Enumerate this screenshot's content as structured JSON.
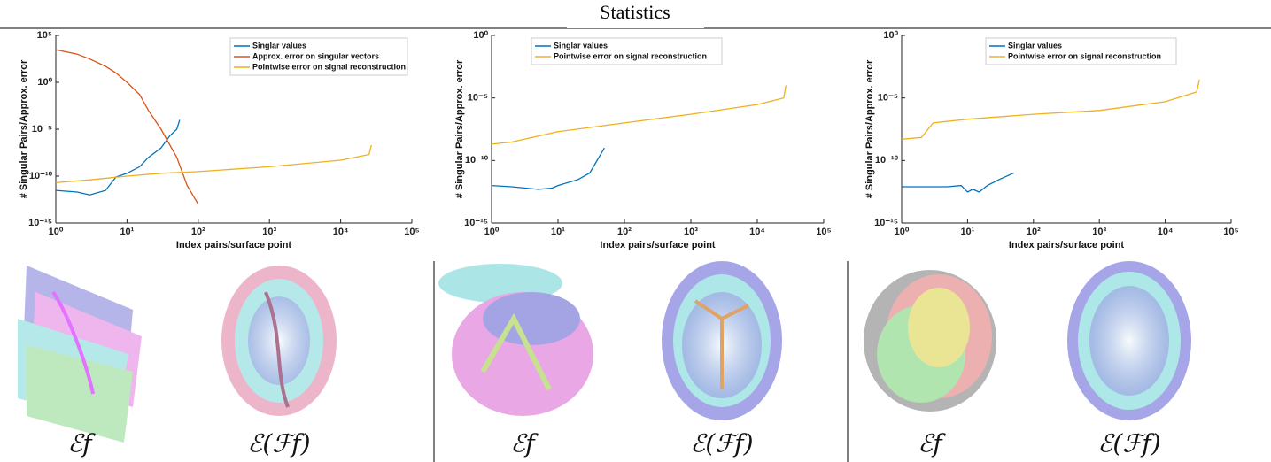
{
  "title": "Statistics",
  "chart_data": [
    {
      "type": "line",
      "xlabel": "Index pairs/surface point",
      "ylabel": "# Singular Pairs/Approx. error",
      "xlog": true,
      "ylog": true,
      "legend": "upper right",
      "xlim": [
        1,
        100000
      ],
      "ylim": [
        1e-15,
        100000
      ],
      "xticks": [
        {
          "value": 1,
          "label": "10⁰"
        },
        {
          "value": 10,
          "label": "10¹"
        },
        {
          "value": 100,
          "label": "10²"
        },
        {
          "value": 1000,
          "label": "10³"
        },
        {
          "value": 10000,
          "label": "10⁴"
        },
        {
          "value": 100000,
          "label": "10⁵"
        }
      ],
      "yticks": [
        {
          "value": 1e-15,
          "label": "10⁻¹⁵"
        },
        {
          "value": 1e-10,
          "label": "10⁻¹⁰"
        },
        {
          "value": 1e-05,
          "label": "10⁻⁵"
        },
        {
          "value": 1,
          "label": "10⁰"
        },
        {
          "value": 100000,
          "label": "10⁵"
        }
      ],
      "series": [
        {
          "name": "Singlar values",
          "color": "#0072BD",
          "x": [
            1,
            2,
            3,
            5,
            7,
            10,
            15,
            20,
            30,
            40,
            50,
            55
          ],
          "values": [
            3e-12,
            2e-12,
            1e-12,
            3e-12,
            8e-11,
            2e-10,
            1e-09,
            1e-08,
            1e-07,
            2e-06,
            1e-05,
            0.0001
          ]
        },
        {
          "name": "Approx. error on singular vectors",
          "color": "#D95319",
          "x": [
            1,
            2,
            3,
            5,
            7,
            10,
            15,
            20,
            30,
            50,
            70,
            100
          ],
          "values": [
            3000,
            1000,
            300,
            50,
            10,
            1,
            0.05,
            0.001,
            1e-05,
            1e-08,
            1e-11,
            1e-13
          ]
        },
        {
          "name": "Pointwise error on signal reconstruction",
          "color": "#EDB120",
          "x": [
            1,
            3,
            10,
            30,
            100,
            1000,
            10000,
            25000,
            27000
          ],
          "values": [
            2e-11,
            4e-11,
            1e-10,
            2e-10,
            3e-10,
            1e-09,
            5e-09,
            2e-08,
            2e-07
          ]
        }
      ]
    },
    {
      "type": "line",
      "xlabel": "Index pairs/surface point",
      "ylabel": "# Singular Pairs/Approx. error",
      "xlog": true,
      "ylog": true,
      "legend": "upper left",
      "xlim": [
        1,
        100000
      ],
      "ylim": [
        1e-15,
        1
      ],
      "xticks": [
        {
          "value": 1,
          "label": "10⁰"
        },
        {
          "value": 10,
          "label": "10¹"
        },
        {
          "value": 100,
          "label": "10²"
        },
        {
          "value": 1000,
          "label": "10³"
        },
        {
          "value": 10000,
          "label": "10⁴"
        },
        {
          "value": 100000,
          "label": "10⁵"
        }
      ],
      "yticks": [
        {
          "value": 1e-15,
          "label": "10⁻¹⁵"
        },
        {
          "value": 1e-10,
          "label": "10⁻¹⁰"
        },
        {
          "value": 1e-05,
          "label": "10⁻⁵"
        },
        {
          "value": 1,
          "label": "10⁰"
        }
      ],
      "series": [
        {
          "name": "Singlar values",
          "color": "#0072BD",
          "x": [
            1,
            2,
            5,
            8,
            10,
            20,
            30,
            50
          ],
          "values": [
            1e-12,
            8e-13,
            5e-13,
            6e-13,
            1e-12,
            3e-12,
            1e-11,
            1e-09
          ]
        },
        {
          "name": "Pointwise error on signal reconstruction",
          "color": "#EDB120",
          "x": [
            1,
            2,
            10,
            100,
            1000,
            10000,
            25000,
            27000
          ],
          "values": [
            2e-09,
            3e-09,
            2e-08,
            1e-07,
            5e-07,
            3e-06,
            1e-05,
            0.0001
          ]
        }
      ]
    },
    {
      "type": "line",
      "xlabel": "Index pairs/surface point",
      "ylabel": "# Singular Pairs/Approx. error",
      "xlog": true,
      "ylog": true,
      "legend": "upper center",
      "xlim": [
        1,
        100000
      ],
      "ylim": [
        1e-15,
        1
      ],
      "xticks": [
        {
          "value": 1,
          "label": "10⁰"
        },
        {
          "value": 10,
          "label": "10¹"
        },
        {
          "value": 100,
          "label": "10²"
        },
        {
          "value": 1000,
          "label": "10³"
        },
        {
          "value": 10000,
          "label": "10⁴"
        },
        {
          "value": 100000,
          "label": "10⁵"
        }
      ],
      "yticks": [
        {
          "value": 1e-15,
          "label": "10⁻¹⁵"
        },
        {
          "value": 1e-10,
          "label": "10⁻¹⁰"
        },
        {
          "value": 1e-05,
          "label": "10⁻⁵"
        },
        {
          "value": 1,
          "label": "10⁰"
        }
      ],
      "series": [
        {
          "name": "Singlar values",
          "color": "#0072BD",
          "x": [
            1,
            5,
            8,
            10,
            12,
            15,
            20,
            30,
            50
          ],
          "values": [
            8e-13,
            8e-13,
            1e-12,
            3e-13,
            5e-13,
            3e-13,
            1e-12,
            3e-12,
            1e-11
          ]
        },
        {
          "name": "Pointwise error on signal reconstruction",
          "color": "#EDB120",
          "x": [
            1,
            2,
            3,
            10,
            100,
            1000,
            10000,
            30000,
            33000
          ],
          "values": [
            5e-09,
            7e-09,
            1e-07,
            2e-07,
            5e-07,
            1e-06,
            5e-06,
            3e-05,
            0.0003
          ]
        }
      ]
    }
  ],
  "panels": [
    {
      "labels": [
        "ℰ𝑓",
        "ℰ(ℱ𝑓)"
      ]
    },
    {
      "labels": [
        "ℰ𝑓",
        "ℰ(ℱ𝑓)"
      ]
    },
    {
      "labels": [
        "ℰ𝑓",
        "ℰ(ℱ𝑓)"
      ]
    }
  ]
}
